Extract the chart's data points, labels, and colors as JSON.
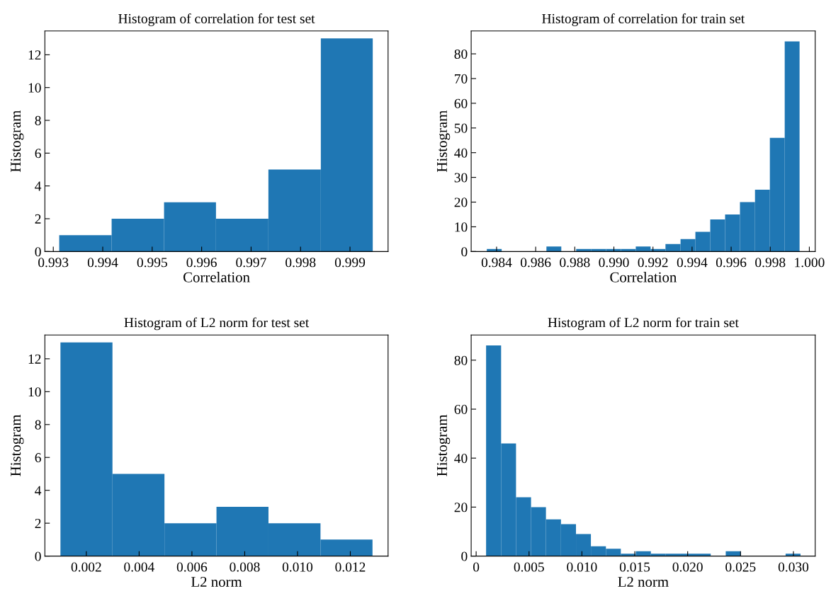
{
  "chart_data": [
    {
      "type": "histogram",
      "title": "Histogram of correlation for test set",
      "xlabel": "Correlation",
      "ylabel": "Histogram",
      "color": "#1f77b4",
      "bins": [
        0.99312,
        0.99418,
        0.99524,
        0.99629,
        0.99735,
        0.99841,
        0.99946
      ],
      "values": [
        1,
        2,
        3,
        2,
        5,
        13
      ],
      "xlim": [
        0.99283,
        0.99977
      ],
      "xticks": [
        0.993,
        0.994,
        0.995,
        0.996,
        0.997,
        0.998,
        0.999
      ],
      "ylim": [
        0,
        13.45
      ],
      "yticks": [
        0,
        2,
        4,
        6,
        8,
        10,
        12
      ],
      "grid": false
    },
    {
      "type": "histogram",
      "title": "Histogram of correlation for train set",
      "xlabel": "Correlation",
      "ylabel": "Histogram",
      "color": "#1f77b4",
      "bins": [
        0.9835,
        0.98426,
        0.98502,
        0.98579,
        0.98655,
        0.98731,
        0.98807,
        0.98883,
        0.9896,
        0.99036,
        0.99112,
        0.99188,
        0.99264,
        0.99341,
        0.99417,
        0.99493,
        0.99569,
        0.99645,
        0.99722,
        0.99798,
        0.99874,
        0.9995
      ],
      "values": [
        1,
        0,
        0,
        0,
        2,
        0,
        1,
        1,
        1,
        1,
        2,
        1,
        3,
        5,
        8,
        13,
        15,
        20,
        25,
        46,
        85
      ],
      "xlim": [
        0.9827,
        1.0003
      ],
      "xticks": [
        0.984,
        0.986,
        0.988,
        {
          "value": 0.99,
          "label": "0.990"
        },
        0.992,
        0.994,
        0.996,
        0.998,
        {
          "value": 1.0,
          "label": "1.000"
        }
      ],
      "ylim": [
        0,
        89.25
      ],
      "yticks": [
        0,
        10,
        20,
        30,
        40,
        50,
        60,
        70,
        80
      ],
      "grid": false
    },
    {
      "type": "histogram",
      "title": "Histogram of L2 norm for test set",
      "xlabel": "L2 norm",
      "ylabel": "Histogram",
      "color": "#1f77b4",
      "bins": [
        0.00102,
        0.00299,
        0.00496,
        0.00693,
        0.0089,
        0.01087,
        0.01284
      ],
      "values": [
        13,
        5,
        2,
        3,
        2,
        1
      ],
      "xlim": [
        0.00043,
        0.01343
      ],
      "xticks": [
        0.002,
        0.004,
        0.006,
        0.008,
        {
          "value": 0.01,
          "label": "0.010"
        },
        0.012
      ],
      "ylim": [
        0,
        13.45
      ],
      "yticks": [
        0,
        2,
        4,
        6,
        8,
        10,
        12
      ],
      "grid": false
    },
    {
      "type": "histogram",
      "title": "Histogram of L2 norm for train set",
      "xlabel": "L2 norm",
      "ylabel": "Histogram",
      "color": "#1f77b4",
      "bins": [
        0.00094,
        0.00236,
        0.00377,
        0.00519,
        0.0066,
        0.00802,
        0.00944,
        0.01085,
        0.01227,
        0.01368,
        0.0151,
        0.01652,
        0.01793,
        0.01935,
        0.02076,
        0.02218,
        0.0236,
        0.02501,
        0.02643,
        0.02784,
        0.02926,
        0.03067
      ],
      "values": [
        86,
        46,
        24,
        20,
        15,
        13,
        9,
        4,
        3,
        1,
        2,
        1,
        1,
        1,
        1,
        0,
        2,
        0,
        0,
        0,
        1
      ],
      "xlim": [
        -0.00047,
        0.03206
      ],
      "xticks": [
        0,
        0.005,
        {
          "value": 0.01,
          "label": "0.010"
        },
        0.015,
        {
          "value": 0.02,
          "label": "0.020"
        },
        0.025,
        {
          "value": 0.03,
          "label": "0.030"
        }
      ],
      "ylim": [
        0,
        90.3
      ],
      "yticks": [
        0,
        20,
        40,
        60,
        80
      ],
      "grid": false
    }
  ]
}
